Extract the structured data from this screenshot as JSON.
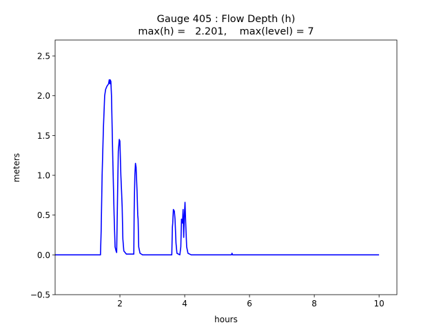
{
  "chart_data": {
    "type": "line",
    "title": "Gauge 405 : Flow Depth (h)",
    "subtitle": "max(h) =   2.201,    max(level) = 7",
    "xlabel": "hours",
    "ylabel": "meters",
    "xlim": [
      0,
      10.55
    ],
    "ylim": [
      -0.5,
      2.7
    ],
    "xticks": [
      2,
      4,
      6,
      8,
      10
    ],
    "xtick_labels": [
      "2",
      "4",
      "6",
      "8",
      "10"
    ],
    "yticks": [
      -0.5,
      0.0,
      0.5,
      1.0,
      1.5,
      2.0,
      2.5
    ],
    "ytick_labels": [
      "−0.5",
      "0.0",
      "0.5",
      "1.0",
      "1.5",
      "2.0",
      "2.5"
    ],
    "grid": false,
    "series": [
      {
        "name": "h",
        "color": "#0000ff",
        "x": [
          0,
          1.4,
          1.42,
          1.45,
          1.49,
          1.53,
          1.56,
          1.6,
          1.65,
          1.67,
          1.69,
          1.7,
          1.72,
          1.74,
          1.78,
          1.82,
          1.85,
          1.88,
          1.9,
          1.93,
          1.95,
          1.98,
          2.0,
          2.03,
          2.05,
          2.07,
          2.09,
          2.12,
          2.2,
          2.43,
          2.44,
          2.46,
          2.48,
          2.5,
          2.53,
          2.55,
          2.56,
          2.58,
          2.62,
          2.7,
          3.6,
          3.62,
          3.63,
          3.65,
          3.68,
          3.7,
          3.73,
          3.76,
          3.85,
          3.88,
          3.9,
          3.93,
          3.95,
          3.97,
          3.99,
          4.01,
          4.03,
          4.06,
          4.1,
          4.2,
          5.44,
          5.46,
          5.48,
          10.0
        ],
        "y": [
          0,
          0,
          0.3,
          1.0,
          1.6,
          2.0,
          2.08,
          2.12,
          2.15,
          2.2,
          2.15,
          2.2,
          2.18,
          2.0,
          1.2,
          0.5,
          0.1,
          0.05,
          0.03,
          0.8,
          1.3,
          1.45,
          1.43,
          1.0,
          0.8,
          0.6,
          0.2,
          0.05,
          0.01,
          0.01,
          0.55,
          1.0,
          1.15,
          1.1,
          0.8,
          0.5,
          0.45,
          0.1,
          0.02,
          0,
          0,
          0.35,
          0.4,
          0.57,
          0.55,
          0.45,
          0.15,
          0.02,
          0,
          0.1,
          0.45,
          0.4,
          0.57,
          0.22,
          0.5,
          0.66,
          0.4,
          0.1,
          0.02,
          0,
          0,
          0.02,
          0,
          0
        ]
      }
    ]
  }
}
